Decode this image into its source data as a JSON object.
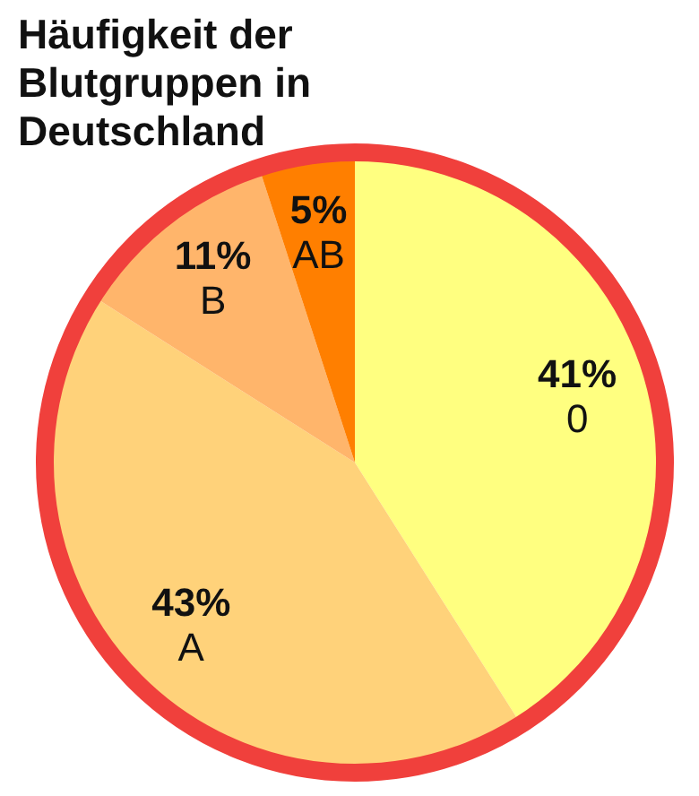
{
  "chart_data": {
    "type": "pie",
    "title": "Häufigkeit der Blutgruppen in Deutschland",
    "categories": [
      "0",
      "A",
      "B",
      "AB"
    ],
    "values": [
      41,
      43,
      11,
      5
    ],
    "value_labels": [
      "41%",
      "43%",
      "11%",
      "5%"
    ],
    "colors": [
      "#ffff80",
      "#ffd27a",
      "#ffb56b",
      "#ff7f00"
    ]
  }
}
